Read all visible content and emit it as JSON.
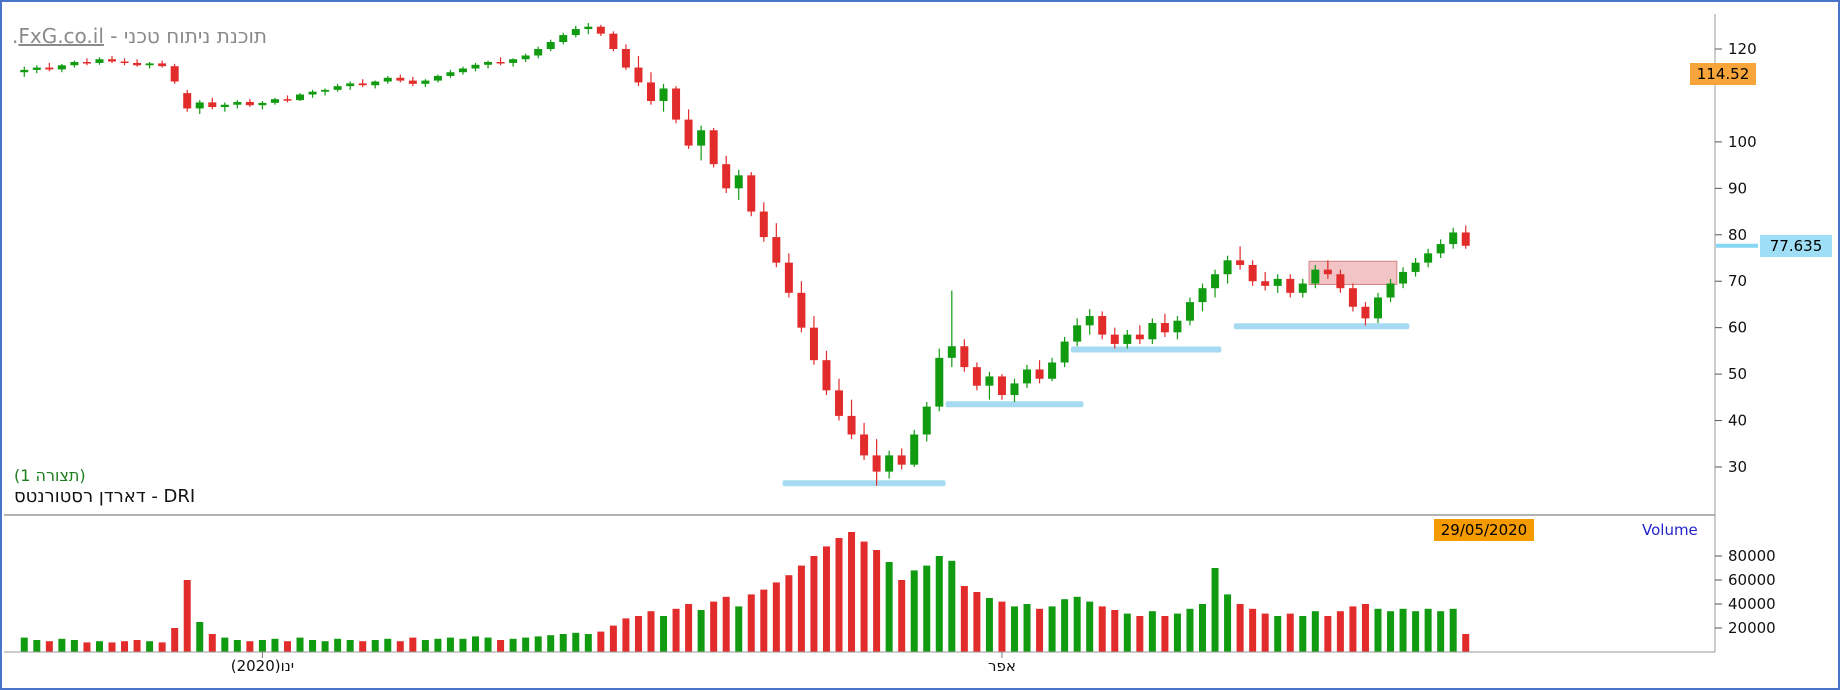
{
  "header": {
    "title_prefix": "תוכנת ניתוח טכני - ",
    "title_link": "FxG.co.il",
    "title_suffix": "."
  },
  "panel_labels": {
    "config": "(תצורה 1)",
    "instrument": "דארדן רסטורנטס - DRI",
    "volume_pane": "Volume",
    "date_badge": "29/05/2020",
    "upper_price_badge": "114.52",
    "last_price_badge": "77.635"
  },
  "colors": {
    "up": "#119b11",
    "down": "#e22c2c",
    "support": "#a6d9f2",
    "resistance_fill": "#f2c4c6",
    "resistance_border": "#cf8484",
    "badge_orange": "#f7a53a",
    "badge_date": "#f59b00",
    "badge_blue": "#9fdef7",
    "connector_blue": "#86d7f3",
    "volume_label": "#2323cc",
    "axis_line": "#9a9a9a",
    "separator": "#666666",
    "tick_text": "#111111",
    "title_gray": "#8a8a8a",
    "config_green": "#1b7d1b",
    "frame_blue": "#4a74c9"
  },
  "axes": {
    "price_ticks": [
      120,
      100,
      90,
      80,
      70,
      60,
      50,
      40,
      30
    ],
    "volume_ticks": [
      80000,
      60000,
      40000,
      20000
    ],
    "month_labels": [
      {
        "text": "ינו(2020)",
        "index": 19
      },
      {
        "text": "אפר",
        "index": 78
      }
    ]
  },
  "chart_data": {
    "type": "candlestick",
    "instrument": "דארדן רסטורנטס - DRI",
    "last_price": 77.635,
    "marked_price_upper": 114.52,
    "marked_date": "29/05/2020",
    "price_axis_range": [
      21,
      127
    ],
    "volume_axis_range": [
      0,
      100000
    ],
    "legend": "ohlcv arrays are [open, high, low, close, volume]",
    "candles_ohlcv": [
      [
        115,
        116.2,
        114,
        115.5,
        12000
      ],
      [
        115.5,
        116.5,
        114.8,
        116,
        10000
      ],
      [
        116,
        117,
        115.2,
        115.6,
        9000
      ],
      [
        115.6,
        116.8,
        115,
        116.5,
        11000
      ],
      [
        116.5,
        117.5,
        116,
        117.2,
        10000
      ],
      [
        117.2,
        118,
        116.5,
        117,
        8000
      ],
      [
        117,
        118.2,
        116.6,
        117.8,
        9000
      ],
      [
        117.8,
        118.5,
        117,
        117.3,
        8000
      ],
      [
        117.3,
        118,
        116.5,
        117,
        9000
      ],
      [
        117,
        117.8,
        116.2,
        116.5,
        10000
      ],
      [
        116.5,
        117.2,
        115.8,
        116.9,
        9000
      ],
      [
        116.9,
        117.5,
        116,
        116.3,
        8000
      ],
      [
        116.3,
        116.8,
        112.5,
        113,
        20000
      ],
      [
        110.5,
        111.2,
        106.5,
        107.2,
        60000
      ],
      [
        107.2,
        109,
        106,
        108.5,
        25000
      ],
      [
        108.5,
        109.5,
        107,
        107.5,
        15000
      ],
      [
        107.5,
        108.5,
        106.5,
        108,
        12000
      ],
      [
        108,
        109,
        107.2,
        108.6,
        10000
      ],
      [
        108.6,
        109.2,
        107.5,
        107.9,
        9000
      ],
      [
        107.9,
        108.8,
        107,
        108.4,
        10000
      ],
      [
        108.4,
        109.5,
        108,
        109.2,
        11000
      ],
      [
        109.2,
        110,
        108.5,
        109,
        9000
      ],
      [
        109,
        110.5,
        108.8,
        110.2,
        12000
      ],
      [
        110.2,
        111.2,
        109.5,
        110.8,
        10000
      ],
      [
        110.8,
        111.5,
        110,
        111.2,
        9000
      ],
      [
        111.2,
        112.5,
        110.8,
        112,
        11000
      ],
      [
        112,
        113,
        111.2,
        112.6,
        10000
      ],
      [
        112.6,
        113.5,
        111.8,
        112.2,
        9000
      ],
      [
        112.2,
        113.2,
        111.5,
        113,
        10000
      ],
      [
        113,
        114.2,
        112.5,
        113.8,
        11000
      ],
      [
        113.8,
        114.5,
        112.8,
        113.2,
        9000
      ],
      [
        113.2,
        114,
        112,
        112.5,
        12000
      ],
      [
        112.5,
        113.5,
        111.8,
        113.2,
        10000
      ],
      [
        113.2,
        114.5,
        112.8,
        114.2,
        11000
      ],
      [
        114.2,
        115.5,
        113.8,
        115,
        12000
      ],
      [
        115,
        116.2,
        114.5,
        115.8,
        11000
      ],
      [
        115.8,
        117,
        115.2,
        116.6,
        13000
      ],
      [
        116.6,
        117.5,
        115.8,
        117.2,
        12000
      ],
      [
        117.2,
        118.2,
        116.5,
        117,
        10000
      ],
      [
        117,
        118,
        116.2,
        117.8,
        11000
      ],
      [
        117.8,
        119,
        117.2,
        118.6,
        12000
      ],
      [
        118.6,
        120.5,
        118,
        120,
        13000
      ],
      [
        120,
        122,
        119.5,
        121.5,
        14000
      ],
      [
        121.5,
        123.5,
        121,
        123,
        15000
      ],
      [
        123,
        125,
        122.5,
        124.3,
        16000
      ],
      [
        124.3,
        125.6,
        123.2,
        124.8,
        15000
      ],
      [
        124.8,
        125.2,
        122.8,
        123.3,
        17000
      ],
      [
        123.3,
        123.8,
        119.5,
        120,
        22000
      ],
      [
        120,
        121,
        115.5,
        116,
        28000
      ],
      [
        116,
        118.5,
        112,
        112.8,
        30000
      ],
      [
        112.8,
        115,
        108,
        108.8,
        34000
      ],
      [
        108.8,
        112.5,
        106.5,
        111.5,
        30000
      ],
      [
        111.5,
        112,
        104,
        104.8,
        36000
      ],
      [
        104.8,
        107,
        98.5,
        99.2,
        40000
      ],
      [
        99.2,
        103.5,
        96,
        102.5,
        35000
      ],
      [
        102.5,
        103,
        94.5,
        95.2,
        42000
      ],
      [
        95.2,
        97,
        89,
        90,
        46000
      ],
      [
        90,
        94,
        87.5,
        92.8,
        38000
      ],
      [
        92.8,
        93.5,
        84,
        85,
        48000
      ],
      [
        85,
        87,
        78.5,
        79.5,
        52000
      ],
      [
        79.5,
        82.5,
        73,
        74,
        58000
      ],
      [
        74,
        76,
        66.5,
        67.5,
        64000
      ],
      [
        67.5,
        70,
        59,
        60,
        72000
      ],
      [
        60,
        62.5,
        52,
        53,
        80000
      ],
      [
        53,
        55,
        45.5,
        46.5,
        88000
      ],
      [
        46.5,
        49,
        40,
        41,
        95000
      ],
      [
        41,
        44.5,
        36,
        37,
        100000
      ],
      [
        37,
        39.5,
        31.5,
        32.5,
        92000
      ],
      [
        32.5,
        36,
        26,
        29,
        85000
      ],
      [
        29,
        33.5,
        27.5,
        32.5,
        75000
      ],
      [
        32.5,
        34,
        29.5,
        30.5,
        60000
      ],
      [
        30.5,
        38,
        30,
        37,
        68000
      ],
      [
        37,
        44,
        35.5,
        43,
        72000
      ],
      [
        43,
        55.5,
        42,
        53.5,
        80000
      ],
      [
        53.5,
        68,
        51.5,
        56,
        76000
      ],
      [
        56,
        57.5,
        50.5,
        51.5,
        55000
      ],
      [
        51.5,
        52.5,
        46.5,
        47.5,
        50000
      ],
      [
        47.5,
        50.5,
        44.5,
        49.5,
        45000
      ],
      [
        49.5,
        50,
        44.5,
        45.5,
        42000
      ],
      [
        45.5,
        49,
        44,
        48,
        38000
      ],
      [
        48,
        52,
        47,
        51,
        40000
      ],
      [
        51,
        53,
        48,
        49,
        36000
      ],
      [
        49,
        53.5,
        48.5,
        52.5,
        38000
      ],
      [
        52.5,
        58,
        51.5,
        57,
        44000
      ],
      [
        57,
        62,
        56,
        60.5,
        46000
      ],
      [
        60.5,
        64,
        58.5,
        62.5,
        42000
      ],
      [
        62.5,
        63.5,
        57.5,
        58.5,
        38000
      ],
      [
        58.5,
        60,
        55.5,
        56.5,
        35000
      ],
      [
        56.5,
        59.5,
        55.5,
        58.5,
        32000
      ],
      [
        58.5,
        60.5,
        56.5,
        57.5,
        30000
      ],
      [
        57.5,
        62,
        56.5,
        61,
        34000
      ],
      [
        61,
        63,
        58,
        59,
        30000
      ],
      [
        59,
        62.5,
        57.5,
        61.5,
        32000
      ],
      [
        61.5,
        66.5,
        60.5,
        65.5,
        36000
      ],
      [
        65.5,
        69.5,
        63.5,
        68.5,
        40000
      ],
      [
        68.5,
        72.5,
        66.5,
        71.5,
        70000
      ],
      [
        71.5,
        75.5,
        69.5,
        74.5,
        48000
      ],
      [
        74.5,
        77.5,
        72.5,
        73.5,
        40000
      ],
      [
        73.5,
        74.5,
        69,
        70,
        36000
      ],
      [
        70,
        72,
        68,
        69,
        32000
      ],
      [
        69,
        71.5,
        67.5,
        70.5,
        30000
      ],
      [
        70.5,
        71.5,
        66.5,
        67.5,
        32000
      ],
      [
        67.5,
        70.5,
        66.5,
        69.5,
        30000
      ],
      [
        69.5,
        73.5,
        68.5,
        72.5,
        34000
      ],
      [
        72.5,
        74.5,
        70.5,
        71.5,
        30000
      ],
      [
        71.5,
        72.5,
        67.5,
        68.5,
        34000
      ],
      [
        68.5,
        69.5,
        63.5,
        64.5,
        38000
      ],
      [
        64.5,
        65.5,
        60.5,
        62,
        40000
      ],
      [
        62,
        67.5,
        61,
        66.5,
        36000
      ],
      [
        66.5,
        70.5,
        65.5,
        69.5,
        34000
      ],
      [
        69.5,
        73,
        68.5,
        72,
        36000
      ],
      [
        72,
        75,
        71,
        74,
        34000
      ],
      [
        74,
        77,
        73,
        76,
        36000
      ],
      [
        76,
        79,
        75,
        78,
        34000
      ],
      [
        78,
        81.5,
        77,
        80.5,
        36000
      ],
      [
        80.5,
        82,
        77,
        77.635,
        15000
      ]
    ],
    "support_levels": [
      {
        "price": 26.5,
        "from_index": 61,
        "to_index": 73
      },
      {
        "price": 43.5,
        "from_index": 74,
        "to_index": 84
      },
      {
        "price": 55.3,
        "from_index": 84,
        "to_index": 95
      },
      {
        "price": 60.3,
        "from_index": 97,
        "to_index": 110
      }
    ],
    "resistance_zone": {
      "price_low": 69.3,
      "price_high": 74.3,
      "from_index": 103,
      "to_index": 109
    }
  }
}
